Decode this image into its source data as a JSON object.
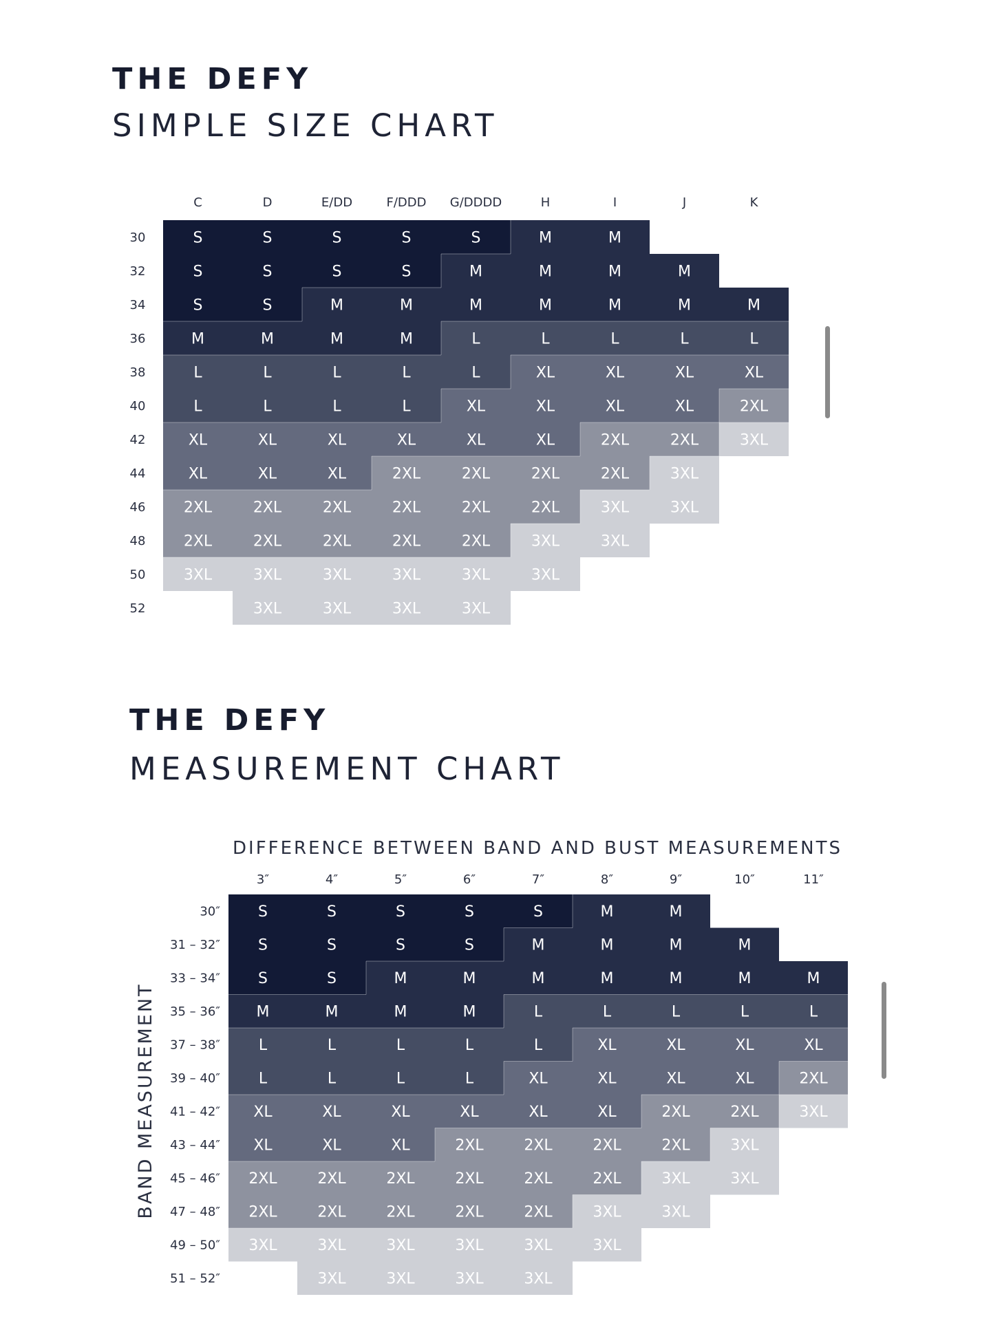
{
  "simple_chart": {
    "title_line1": "THE DEFY",
    "title_line2": "SIMPLE SIZE CHART"
  },
  "measurement_chart": {
    "title_line1": "THE DEFY",
    "title_line2": "MEASUREMENT CHART"
  },
  "colors": {
    "S": "#121a36",
    "M": "#252d48",
    "L": "#454d63",
    "XL": "#646a7e",
    "2XL": "#8e929f",
    "3XL": "#ced0d6",
    "header_text": "#2a2f40",
    "cell_text": "#ffffff"
  },
  "chart_data": [
    {
      "type": "table",
      "title": "SIMPLE SIZE CHART",
      "columns": [
        "C",
        "D",
        "E/DD",
        "F/DDD",
        "G/DDDD",
        "H",
        "I",
        "J",
        "K"
      ],
      "rows": [
        "30",
        "32",
        "34",
        "36",
        "38",
        "40",
        "42",
        "44",
        "46",
        "48",
        "50",
        "52"
      ],
      "cells": [
        [
          "S",
          "S",
          "S",
          "S",
          "S",
          "M",
          "M",
          "",
          ""
        ],
        [
          "S",
          "S",
          "S",
          "S",
          "M",
          "M",
          "M",
          "M",
          ""
        ],
        [
          "S",
          "S",
          "M",
          "M",
          "M",
          "M",
          "M",
          "M",
          "M"
        ],
        [
          "M",
          "M",
          "M",
          "M",
          "L",
          "L",
          "L",
          "L",
          "L"
        ],
        [
          "L",
          "L",
          "L",
          "L",
          "L",
          "XL",
          "XL",
          "XL",
          "XL"
        ],
        [
          "L",
          "L",
          "L",
          "L",
          "XL",
          "XL",
          "XL",
          "XL",
          "2XL"
        ],
        [
          "XL",
          "XL",
          "XL",
          "XL",
          "XL",
          "XL",
          "2XL",
          "2XL",
          "3XL"
        ],
        [
          "XL",
          "XL",
          "XL",
          "2XL",
          "2XL",
          "2XL",
          "2XL",
          "3XL",
          ""
        ],
        [
          "2XL",
          "2XL",
          "2XL",
          "2XL",
          "2XL",
          "2XL",
          "3XL",
          "3XL",
          ""
        ],
        [
          "2XL",
          "2XL",
          "2XL",
          "2XL",
          "2XL",
          "3XL",
          "3XL",
          "",
          ""
        ],
        [
          "3XL",
          "3XL",
          "3XL",
          "3XL",
          "3XL",
          "3XL",
          "",
          "",
          ""
        ],
        [
          "",
          "3XL",
          "3XL",
          "3XL",
          "3XL",
          "",
          "",
          "",
          ""
        ]
      ]
    },
    {
      "type": "table",
      "title": "MEASUREMENT CHART",
      "xlabel": "DIFFERENCE BETWEEN BAND AND BUST MEASUREMENTS",
      "ylabel": "BAND MEASUREMENT",
      "columns": [
        "3″",
        "4″",
        "5″",
        "6″",
        "7″",
        "8″",
        "9″",
        "10″",
        "11″"
      ],
      "rows": [
        "30″",
        "31 – 32″",
        "33 – 34″",
        "35 – 36″",
        "37 – 38″",
        "39 – 40″",
        "41 – 42″",
        "43 – 44″",
        "45 – 46″",
        "47 – 48″",
        "49 – 50″",
        "51 – 52″"
      ],
      "cells": [
        [
          "S",
          "S",
          "S",
          "S",
          "S",
          "M",
          "M",
          "",
          ""
        ],
        [
          "S",
          "S",
          "S",
          "S",
          "M",
          "M",
          "M",
          "M",
          ""
        ],
        [
          "S",
          "S",
          "M",
          "M",
          "M",
          "M",
          "M",
          "M",
          "M"
        ],
        [
          "M",
          "M",
          "M",
          "M",
          "L",
          "L",
          "L",
          "L",
          "L"
        ],
        [
          "L",
          "L",
          "L",
          "L",
          "L",
          "XL",
          "XL",
          "XL",
          "XL"
        ],
        [
          "L",
          "L",
          "L",
          "L",
          "XL",
          "XL",
          "XL",
          "XL",
          "2XL"
        ],
        [
          "XL",
          "XL",
          "XL",
          "XL",
          "XL",
          "XL",
          "2XL",
          "2XL",
          "3XL"
        ],
        [
          "XL",
          "XL",
          "XL",
          "2XL",
          "2XL",
          "2XL",
          "2XL",
          "3XL",
          ""
        ],
        [
          "2XL",
          "2XL",
          "2XL",
          "2XL",
          "2XL",
          "2XL",
          "3XL",
          "3XL",
          ""
        ],
        [
          "2XL",
          "2XL",
          "2XL",
          "2XL",
          "2XL",
          "3XL",
          "3XL",
          "",
          ""
        ],
        [
          "3XL",
          "3XL",
          "3XL",
          "3XL",
          "3XL",
          "3XL",
          "",
          "",
          ""
        ],
        [
          "",
          "3XL",
          "3XL",
          "3XL",
          "3XL",
          "",
          "",
          "",
          ""
        ]
      ]
    }
  ]
}
